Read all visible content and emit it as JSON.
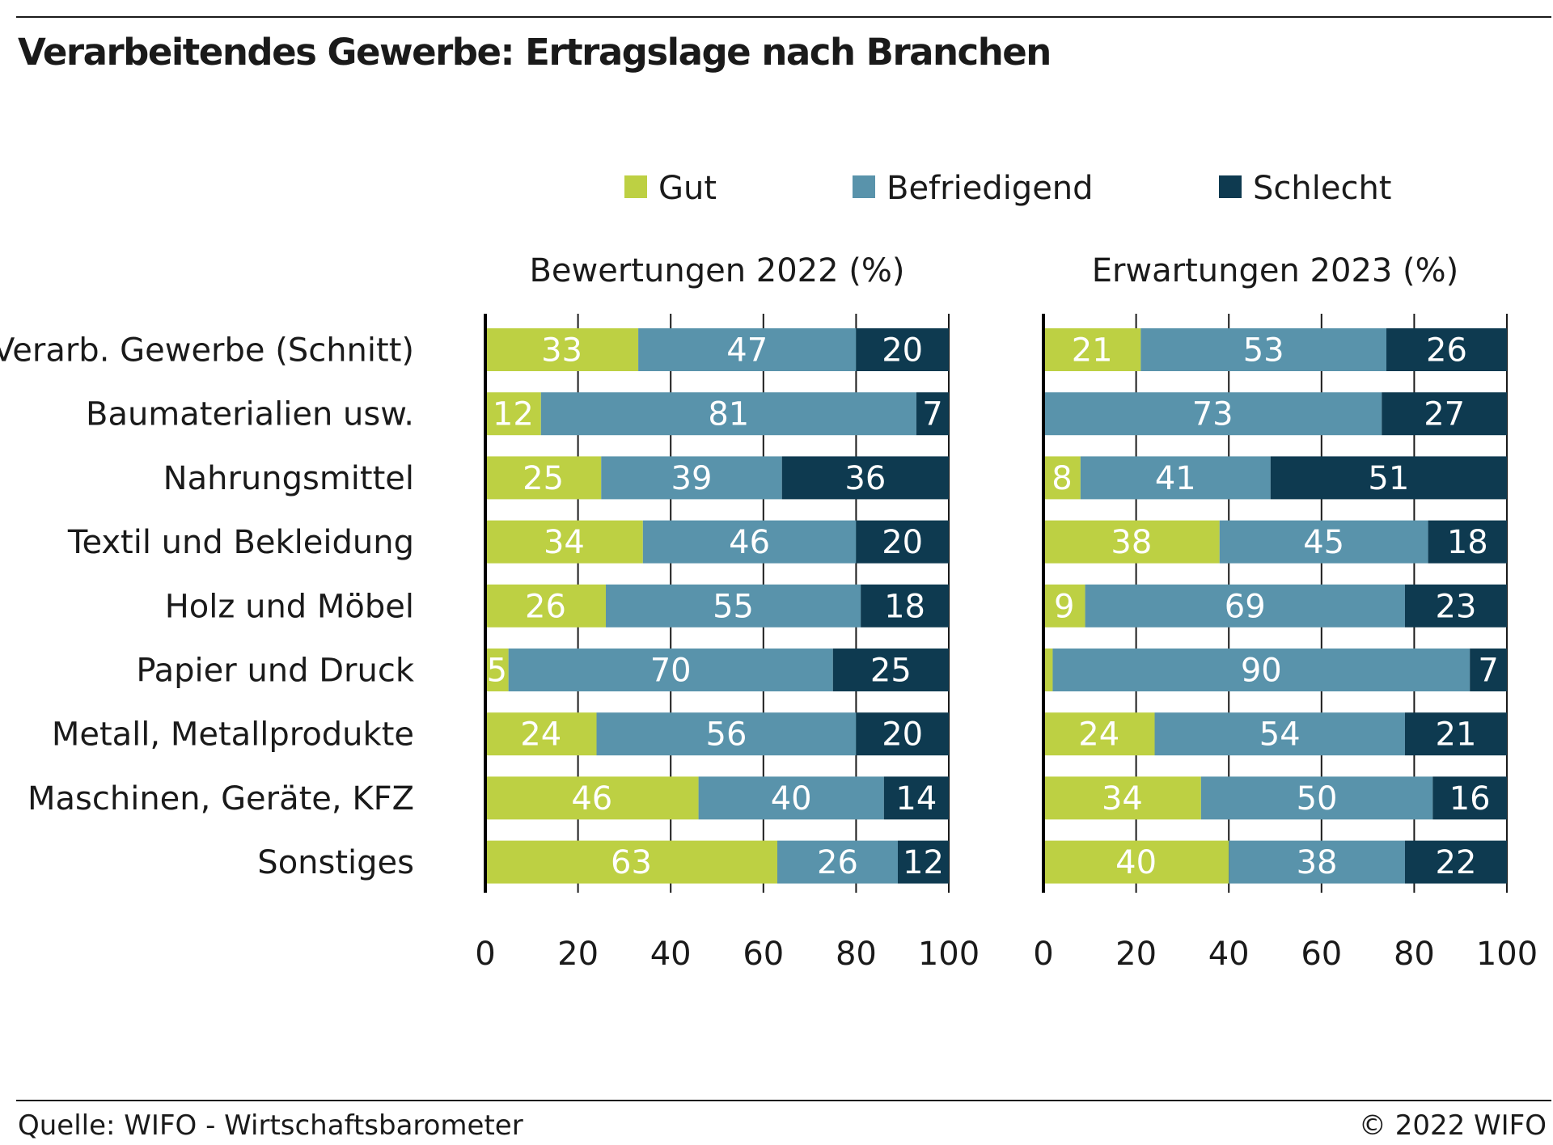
{
  "title": "Verarbeitendes Gewerbe: Ertragslage nach Branchen",
  "source": "Quelle: WIFO - Wirtschaftsbarometer",
  "copyright": "© 2022 WIFO",
  "colors": {
    "Gut": "#bdd043",
    "Befriedigend": "#5993ab",
    "Schlecht": "#0e3a50",
    "text": "#1a1a1a"
  },
  "chart_data": {
    "type": "bar",
    "orientation": "horizontal",
    "stacked": true,
    "legend": {
      "placement": "top",
      "entries": [
        "Gut",
        "Befriedigend",
        "Schlecht"
      ]
    },
    "categories": [
      "Verarb. Gewerbe (Schnitt)",
      "Baumaterialien usw.",
      "Nahrungsmittel",
      "Textil und Bekleidung",
      "Holz und Möbel",
      "Papier und Druck",
      "Metall, Metallprodukte",
      "Maschinen, Geräte, KFZ",
      "Sonstiges"
    ],
    "panels": [
      {
        "title": "Bewertungen 2022 (%)",
        "xlim": [
          0,
          100
        ],
        "xticks": [
          0,
          20,
          40,
          60,
          80,
          100
        ],
        "series": [
          {
            "name": "Gut",
            "values": [
              33,
              12,
              25,
              34,
              26,
              5,
              24,
              46,
              63
            ]
          },
          {
            "name": "Befriedigend",
            "values": [
              47,
              81,
              39,
              46,
              55,
              70,
              56,
              40,
              26
            ]
          },
          {
            "name": "Schlecht",
            "values": [
              20,
              7,
              36,
              20,
              18,
              25,
              20,
              14,
              12
            ]
          }
        ],
        "labels": [
          [
            "33",
            "47",
            "20"
          ],
          [
            "12",
            "81",
            "7"
          ],
          [
            "25",
            "39",
            "36"
          ],
          [
            "34",
            "46",
            "20"
          ],
          [
            "26",
            "55",
            "18"
          ],
          [
            "5",
            "70",
            "25"
          ],
          [
            "24",
            "56",
            "20"
          ],
          [
            "46",
            "40",
            "14"
          ],
          [
            "63",
            "26",
            "12"
          ]
        ]
      },
      {
        "title": "Erwartungen 2023 (%)",
        "xlim": [
          0,
          100
        ],
        "xticks": [
          0,
          20,
          40,
          60,
          80,
          100
        ],
        "series": [
          {
            "name": "Gut",
            "values": [
              21,
              0,
              8,
              38,
              9,
              2,
              24,
              34,
              40
            ]
          },
          {
            "name": "Befriedigend",
            "values": [
              53,
              73,
              41,
              45,
              69,
              90,
              54,
              50,
              38
            ]
          },
          {
            "name": "Schlecht",
            "values": [
              26,
              27,
              51,
              18,
              23,
              7,
              21,
              16,
              22
            ]
          }
        ],
        "labels": [
          [
            "21",
            "53",
            "26"
          ],
          [
            "",
            "73",
            "27"
          ],
          [
            "8",
            "41",
            "51"
          ],
          [
            "38",
            "45",
            "18"
          ],
          [
            "9",
            "69",
            "23"
          ],
          [
            "",
            "90",
            "7"
          ],
          [
            "24",
            "54",
            "21"
          ],
          [
            "34",
            "50",
            "16"
          ],
          [
            "40",
            "38",
            "22"
          ]
        ]
      }
    ]
  }
}
